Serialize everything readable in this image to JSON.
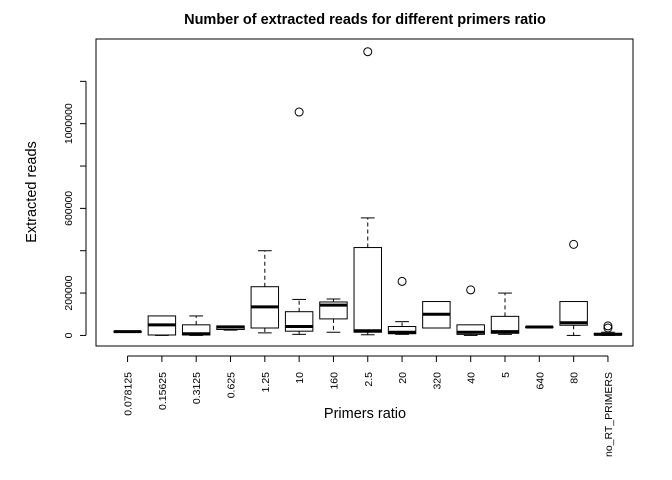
{
  "chart_data": {
    "type": "boxplot",
    "title": "Number of extracted reads for different primers ratio",
    "xlabel": "Primers ratio",
    "ylabel": "Extracted reads",
    "y_ticks": [
      0,
      200000,
      600000,
      1000000
    ],
    "ylim": [
      -50000,
      1400000
    ],
    "categories": [
      "0.078125",
      "0.15625",
      "0.3125",
      "0.625",
      "1.25",
      "10",
      "160",
      "2.5",
      "20",
      "320",
      "40",
      "5",
      "640",
      "80",
      "no_RT_PRIMERS"
    ],
    "boxes": [
      {
        "category": "0.078125",
        "min": 18000,
        "q1": 18000,
        "median": 18000,
        "q3": 18000,
        "max": 18000,
        "outliers": []
      },
      {
        "category": "0.15625",
        "min": 0,
        "q1": 2000,
        "median": 50000,
        "q3": 92000,
        "max": 92000,
        "outliers": []
      },
      {
        "category": "0.3125",
        "min": 0,
        "q1": 2000,
        "median": 8000,
        "q3": 50000,
        "max": 92000,
        "outliers": []
      },
      {
        "category": "0.625",
        "min": 25000,
        "q1": 28000,
        "median": 40000,
        "q3": 45000,
        "max": 45000,
        "outliers": []
      },
      {
        "category": "1.25",
        "min": 12000,
        "q1": 35000,
        "median": 135000,
        "q3": 230000,
        "max": 400000,
        "outliers": []
      },
      {
        "category": "10",
        "min": 5000,
        "q1": 20000,
        "median": 42000,
        "q3": 112000,
        "max": 170000,
        "outliers": [
          1055000
        ]
      },
      {
        "category": "160",
        "min": 15000,
        "q1": 78000,
        "median": 143000,
        "q3": 158000,
        "max": 172000,
        "outliers": []
      },
      {
        "category": "2.5",
        "min": 3000,
        "q1": 15000,
        "median": 22000,
        "q3": 415000,
        "max": 555000,
        "outliers": [
          1340000
        ]
      },
      {
        "category": "20",
        "min": 5000,
        "q1": 8000,
        "median": 15000,
        "q3": 42000,
        "max": 65000,
        "outliers": [
          255000
        ]
      },
      {
        "category": "320",
        "min": 35000,
        "q1": 35000,
        "median": 100000,
        "q3": 160000,
        "max": 160000,
        "outliers": []
      },
      {
        "category": "40",
        "min": 0,
        "q1": 5000,
        "median": 15000,
        "q3": 50000,
        "max": 50000,
        "outliers": [
          215000
        ]
      },
      {
        "category": "5",
        "min": 5000,
        "q1": 10000,
        "median": 18000,
        "q3": 90000,
        "max": 200000,
        "outliers": []
      },
      {
        "category": "640",
        "min": 40000,
        "q1": 40000,
        "median": 40000,
        "q3": 40000,
        "max": 40000,
        "outliers": []
      },
      {
        "category": "80",
        "min": 0,
        "q1": 48000,
        "median": 60000,
        "q3": 160000,
        "max": 160000,
        "outliers": [
          430000
        ]
      },
      {
        "category": "no_RT_PRIMERS",
        "min": 0,
        "q1": 2000,
        "median": 5000,
        "q3": 10000,
        "max": 15000,
        "outliers": [
          45000,
          35000
        ]
      }
    ],
    "grid": false,
    "legend": "none",
    "colors": {
      "box_fill": "#ffffff",
      "stroke": "#000000"
    }
  }
}
